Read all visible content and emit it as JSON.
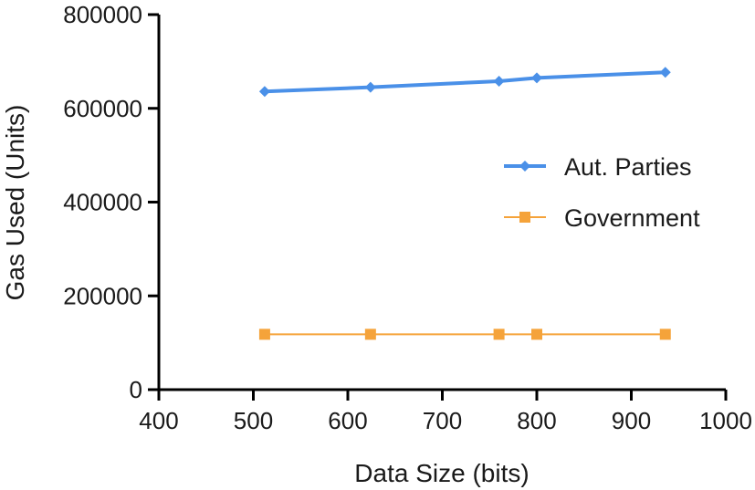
{
  "chart_data": {
    "type": "line",
    "title": "",
    "xlabel": "Data Size (bits)",
    "ylabel": "Gas Used (Units)",
    "xlim": [
      400,
      1000
    ],
    "ylim": [
      0,
      800000
    ],
    "x_ticks": [
      "400",
      "500",
      "600",
      "700",
      "800",
      "900",
      "1000"
    ],
    "y_ticks": [
      "0",
      "200000",
      "400000",
      "600000",
      "800000"
    ],
    "grid": false,
    "legend": "right-middle",
    "series": [
      {
        "name": "Aut. Parties",
        "color": "#4a90e8",
        "marker": "diamond",
        "x": [
          512,
          624,
          760,
          800,
          936
        ],
        "y": [
          636000,
          645000,
          658000,
          665000,
          677000
        ]
      },
      {
        "name": "Government",
        "color": "#f5a33a",
        "marker": "square",
        "x": [
          512,
          624,
          760,
          800,
          936
        ],
        "y": [
          118000,
          118000,
          118000,
          118000,
          118000
        ]
      }
    ]
  }
}
